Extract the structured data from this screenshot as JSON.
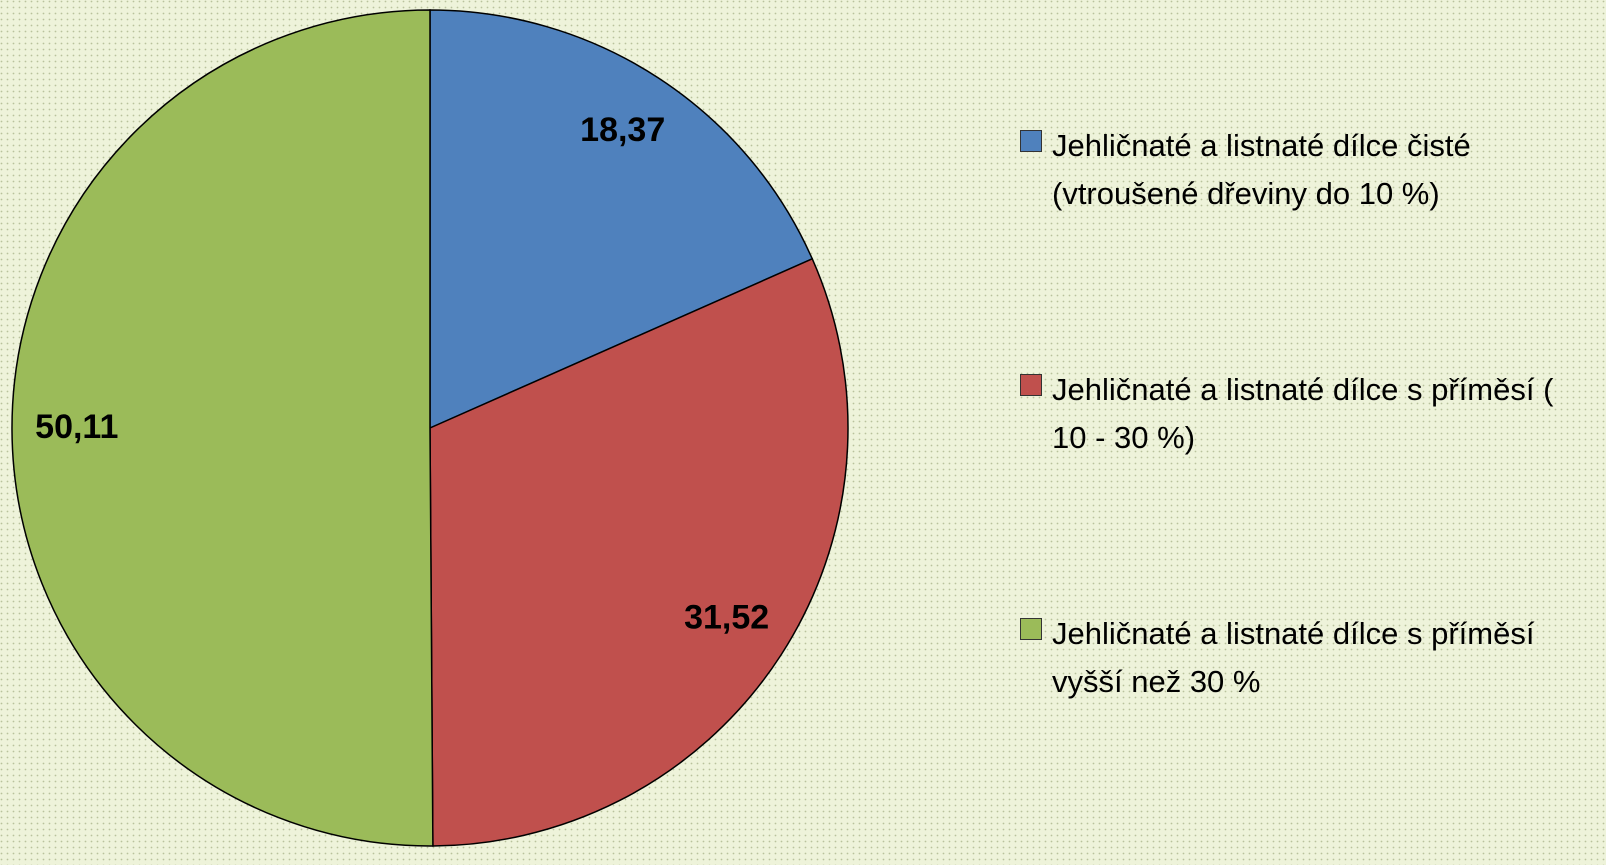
{
  "chart_data": {
    "type": "pie",
    "categories": [
      "Jehličnaté a listnaté dílce čisté (vtroušené dřeviny do 10 %)",
      "Jehličnaté a listnaté dílce s příměsí ( 10 - 30 %)",
      "Jehličnaté a listnaté dílce s příměsí vyšší než 30 %"
    ],
    "values": [
      18.37,
      31.52,
      50.11
    ],
    "value_labels": [
      "18,37",
      "31,52",
      "50,11"
    ],
    "colors": [
      "#4f81bd",
      "#c0504d",
      "#9bbb59"
    ],
    "legend": "right"
  }
}
